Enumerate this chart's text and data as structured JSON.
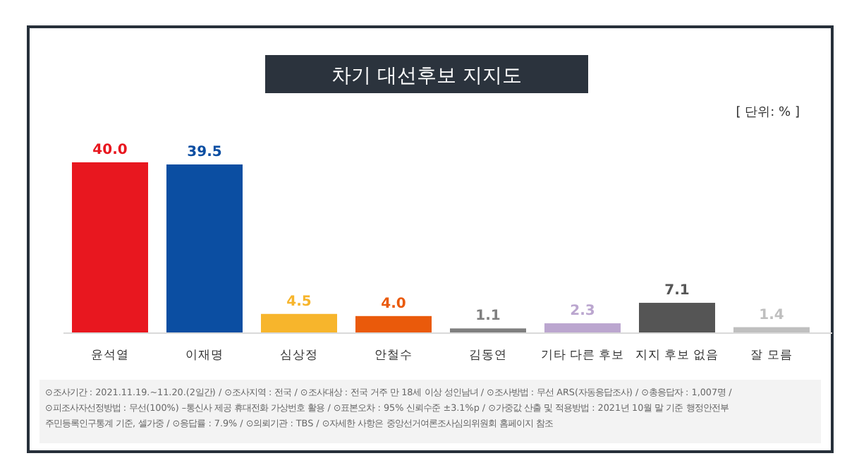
{
  "chart_data": {
    "type": "bar",
    "title": "차기 대선후보 지지도",
    "categories": [
      "윤석열",
      "이재명",
      "심상정",
      "안철수",
      "김동연",
      "기타 다른 후보",
      "지지 후보 없음",
      "잘 모름"
    ],
    "values": [
      40.0,
      39.5,
      4.5,
      4.0,
      1.1,
      2.3,
      7.1,
      1.4
    ],
    "value_labels": [
      "40.0",
      "39.5",
      "4.5",
      "4.0",
      "1.1",
      "2.3",
      "7.1",
      "1.4"
    ],
    "colors": [
      "#e8171f",
      "#0b4ea2",
      "#f7b52c",
      "#ea5a0b",
      "#7f7f7f",
      "#bba6cf",
      "#555555",
      "#bfbfbf"
    ],
    "annotations": [
      "[ 단위: % ]",
      "⊙조사기간 : 2021.11.19.~11.20.(2일간) / ⊙조사지역 : 전국 / ⊙조사대상 : 전국 거주 만 18세 이상 성인남녀 / ⊙조사방법 : 무선 ARS(자동응답조사) / ⊙총응답자 : 1,007명 /",
      "⊙피조사자선정방법 : 무선(100%) –통신사 제공 휴대전화 가상번호 활용 / ⊙표본오차 : 95% 신뢰수준 ±3.1%p / ⊙가중값 산출 및 적용방법 : 2021년 10월 말 기준 행정안전부",
      "주민등록인구통계 기준, 셀가중 / ⊙응답률 : 7.9% / ⊙의뢰기관 : TBS / ⊙자세한 사항은 중앙선거여론조사심의위원회 홈페이지 참조"
    ]
  }
}
